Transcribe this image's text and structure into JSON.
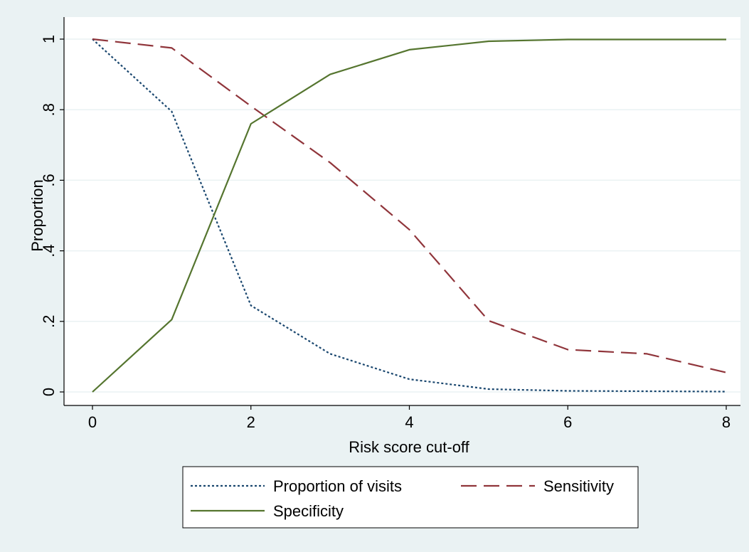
{
  "chart_data": {
    "type": "line",
    "title": "",
    "xlabel": "Risk score cut-off",
    "ylabel": "Proportion",
    "xlim": [
      0,
      8
    ],
    "ylim": [
      0,
      1
    ],
    "x_ticks": [
      0,
      2,
      4,
      6,
      8
    ],
    "x_tick_labels": [
      "0",
      "2",
      "4",
      "6",
      "8"
    ],
    "y_ticks": [
      0,
      0.2,
      0.4,
      0.6,
      0.8,
      1
    ],
    "y_tick_labels": [
      "0",
      ".2",
      ".4",
      ".6",
      ".8",
      "1"
    ],
    "grid": true,
    "legend_position": "bottom",
    "x": [
      0,
      1,
      2,
      3,
      4,
      5,
      6,
      7,
      8
    ],
    "series": [
      {
        "name": "Proportion of visits",
        "style": "dotted",
        "color": "#1a476f",
        "values": [
          1.0,
          0.795,
          0.245,
          0.108,
          0.036,
          0.008,
          0.003,
          0.002,
          0.001
        ]
      },
      {
        "name": "Sensitivity",
        "style": "dashed",
        "color": "#90353b",
        "values": [
          1.0,
          0.975,
          0.81,
          0.65,
          0.46,
          0.202,
          0.12,
          0.108,
          0.055
        ]
      },
      {
        "name": "Specificity",
        "style": "solid",
        "color": "#55752f",
        "values": [
          0.0,
          0.205,
          0.76,
          0.9,
          0.97,
          0.994,
          0.999,
          0.999,
          0.999
        ]
      }
    ]
  },
  "colors": {
    "background": "#eaf2f3",
    "plot_background": "#ffffff",
    "grid": "#eaf2f3"
  }
}
